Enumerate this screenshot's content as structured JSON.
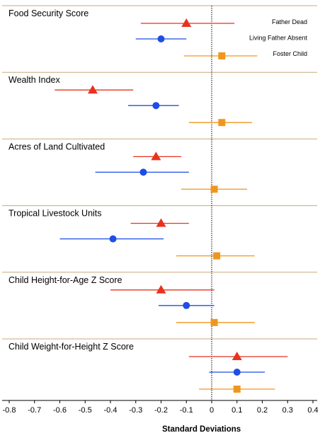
{
  "chart_data": {
    "type": "forest",
    "xlabel": "Standard Deviations",
    "xlim": [
      -0.8,
      0.4
    ],
    "xticks": [
      "-0.8",
      "-0.7",
      "-0.6",
      "-0.5",
      "-0.4",
      "-0.3",
      "-0.2",
      "-0.1",
      "0",
      "0.1",
      "0.2",
      "0.3",
      "0.4"
    ],
    "reference_line": 0,
    "legend_placement": "inside top-right of first panel",
    "series": [
      {
        "name": "Father Dead",
        "color": "#e8321e",
        "marker": "triangle"
      },
      {
        "name": "Living Father Absent",
        "color": "#1f4de6",
        "marker": "circle"
      },
      {
        "name": "Foster Child",
        "color": "#f0961e",
        "marker": "square"
      }
    ],
    "panels": [
      {
        "title": "Food Security Score",
        "estimates": [
          {
            "series": "Father Dead",
            "point": -0.1,
            "lo": -0.28,
            "hi": 0.09
          },
          {
            "series": "Living Father Absent",
            "point": -0.2,
            "lo": -0.3,
            "hi": -0.1
          },
          {
            "series": "Foster Child",
            "point": 0.04,
            "lo": -0.11,
            "hi": 0.18
          }
        ]
      },
      {
        "title": "Wealth Index",
        "estimates": [
          {
            "series": "Father Dead",
            "point": -0.47,
            "lo": -0.62,
            "hi": -0.31
          },
          {
            "series": "Living Father Absent",
            "point": -0.22,
            "lo": -0.33,
            "hi": -0.13
          },
          {
            "series": "Foster Child",
            "point": 0.04,
            "lo": -0.09,
            "hi": 0.16
          }
        ]
      },
      {
        "title": "Acres of Land Cultivated",
        "estimates": [
          {
            "series": "Father Dead",
            "point": -0.22,
            "lo": -0.31,
            "hi": -0.12
          },
          {
            "series": "Living Father Absent",
            "point": -0.27,
            "lo": -0.46,
            "hi": -0.09
          },
          {
            "series": "Foster Child",
            "point": 0.01,
            "lo": -0.12,
            "hi": 0.14
          }
        ]
      },
      {
        "title": "Tropical Livestock Units",
        "estimates": [
          {
            "series": "Father Dead",
            "point": -0.2,
            "lo": -0.32,
            "hi": -0.09
          },
          {
            "series": "Living Father Absent",
            "point": -0.39,
            "lo": -0.6,
            "hi": -0.19
          },
          {
            "series": "Foster Child",
            "point": 0.02,
            "lo": -0.14,
            "hi": 0.17
          }
        ]
      },
      {
        "title": "Child Height-for-Age Z Score",
        "estimates": [
          {
            "series": "Father Dead",
            "point": -0.2,
            "lo": -0.4,
            "hi": 0.01
          },
          {
            "series": "Living Father Absent",
            "point": -0.1,
            "lo": -0.21,
            "hi": 0.01
          },
          {
            "series": "Foster Child",
            "point": 0.01,
            "lo": -0.14,
            "hi": 0.17
          }
        ]
      },
      {
        "title": "Child Weight-for-Height Z Score",
        "estimates": [
          {
            "series": "Father Dead",
            "point": 0.1,
            "lo": -0.09,
            "hi": 0.3
          },
          {
            "series": "Living Father Absent",
            "point": 0.1,
            "lo": -0.01,
            "hi": 0.21
          },
          {
            "series": "Foster Child",
            "point": 0.1,
            "lo": -0.05,
            "hi": 0.25
          }
        ]
      }
    ]
  }
}
